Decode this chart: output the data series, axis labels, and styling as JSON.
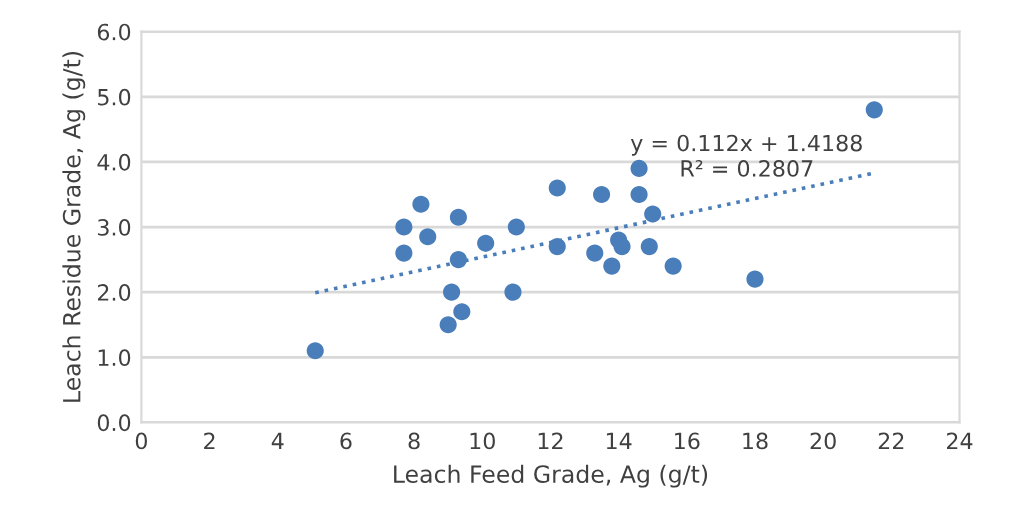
{
  "chart_data": {
    "type": "scatter",
    "xlabel": "Leach Feed Grade, Ag (g/t)",
    "ylabel": "Leach Residue Grade, Ag (g/t)",
    "xlim": [
      0,
      24
    ],
    "xticks": [
      0,
      2,
      4,
      6,
      8,
      10,
      12,
      14,
      16,
      18,
      20,
      22,
      24
    ],
    "ylim": [
      0,
      6
    ],
    "yticks": [
      {
        "value": 0,
        "label": "0.0"
      },
      {
        "value": 1,
        "label": "1.0"
      },
      {
        "value": 2,
        "label": "2.0"
      },
      {
        "value": 3,
        "label": "3.0"
      },
      {
        "value": 4,
        "label": "4.0"
      },
      {
        "value": 5,
        "label": "5.0"
      },
      {
        "value": 6,
        "label": "6.0"
      }
    ],
    "grid": "y",
    "legend": false,
    "series": [
      {
        "marker": "circle",
        "color": "#4a7ebb",
        "x": [
          5.1,
          7.7,
          7.7,
          8.2,
          8.4,
          9.0,
          9.1,
          9.3,
          9.3,
          9.4,
          10.1,
          11.0,
          10.9,
          12.2,
          12.2,
          13.3,
          13.5,
          13.8,
          14.0,
          14.1,
          14.6,
          14.6,
          15.0,
          14.9,
          15.6,
          18.0,
          21.5
        ],
        "values": [
          1.1,
          2.6,
          3.0,
          3.35,
          2.85,
          1.5,
          2.0,
          3.15,
          2.5,
          1.7,
          2.75,
          3.0,
          2.0,
          3.6,
          2.7,
          2.6,
          3.5,
          2.4,
          2.8,
          2.7,
          3.9,
          3.5,
          3.2,
          2.7,
          2.4,
          2.2,
          4.8
        ]
      },
      {
        "type": "line",
        "color": "#4a7ebb",
        "line_style": "dotted",
        "x": [
          5.1,
          21.5
        ],
        "values": [
          1.99,
          3.83
        ]
      }
    ],
    "annotations": [
      "y = 0.112x + 1.4188",
      "R² = 0.2807"
    ]
  }
}
